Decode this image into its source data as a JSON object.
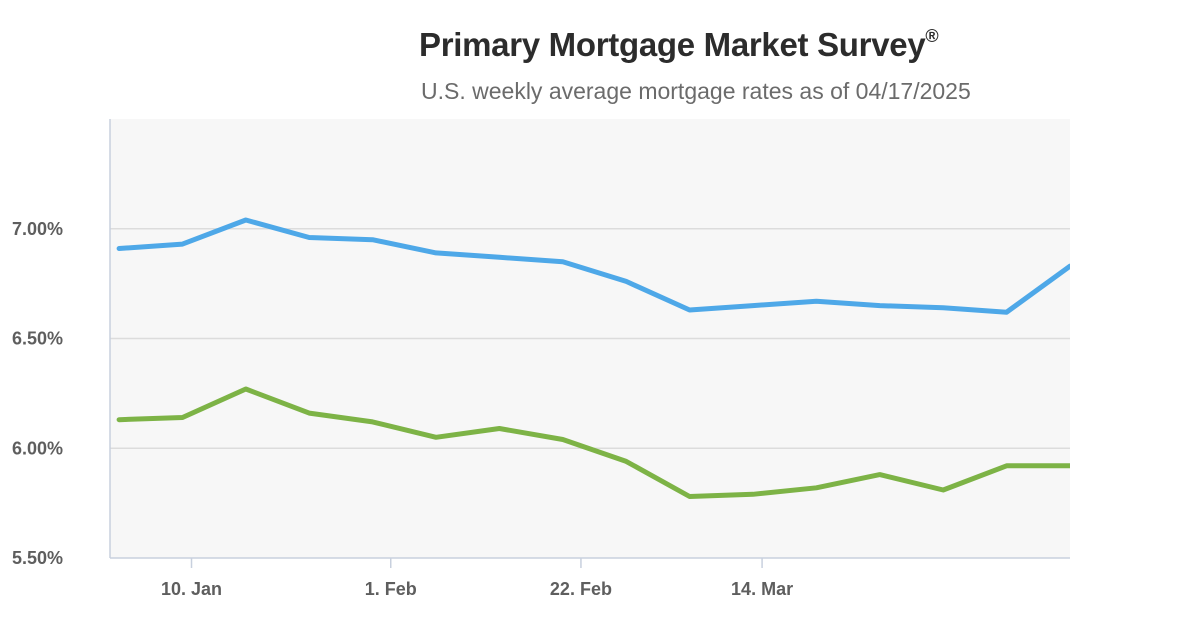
{
  "chart_data": {
    "type": "line",
    "title": "Primary Mortgage Market Survey",
    "title_mark": "®",
    "subtitle": "U.S. weekly average mortgage rates as of 04/17/2025",
    "xlabel": "",
    "ylabel": "",
    "ylim": [
      5.5,
      7.5
    ],
    "yticks": [
      5.5,
      6.0,
      6.5,
      7.0
    ],
    "ytick_labels": [
      "5.50%",
      "6.00%",
      "6.50%",
      "7.00%"
    ],
    "x_dates": [
      "2025-01-02",
      "2025-01-09",
      "2025-01-16",
      "2025-01-23",
      "2025-01-30",
      "2025-02-06",
      "2025-02-13",
      "2025-02-20",
      "2025-02-27",
      "2025-03-06",
      "2025-03-13",
      "2025-03-20",
      "2025-03-27",
      "2025-04-03",
      "2025-04-10",
      "2025-04-17"
    ],
    "xlim": [
      "2025-01-01",
      "2025-04-17"
    ],
    "xticks": [
      "2025-01-10",
      "2025-02-01",
      "2025-02-22",
      "2025-03-14"
    ],
    "xtick_labels": [
      "10. Jan",
      "1. Feb",
      "22. Feb",
      "14. Mar"
    ],
    "grid": true,
    "legend": "none",
    "series": [
      {
        "color": "#4ea8e8",
        "values": [
          6.91,
          6.93,
          7.04,
          6.96,
          6.95,
          6.89,
          6.87,
          6.85,
          6.76,
          6.63,
          6.65,
          6.67,
          6.65,
          6.64,
          6.62,
          6.83
        ]
      },
      {
        "color": "#7db346",
        "values": [
          6.13,
          6.14,
          6.27,
          6.16,
          6.12,
          6.05,
          6.09,
          6.04,
          5.94,
          5.78,
          5.79,
          5.82,
          5.88,
          5.81,
          5.92,
          5.92
        ]
      }
    ]
  }
}
